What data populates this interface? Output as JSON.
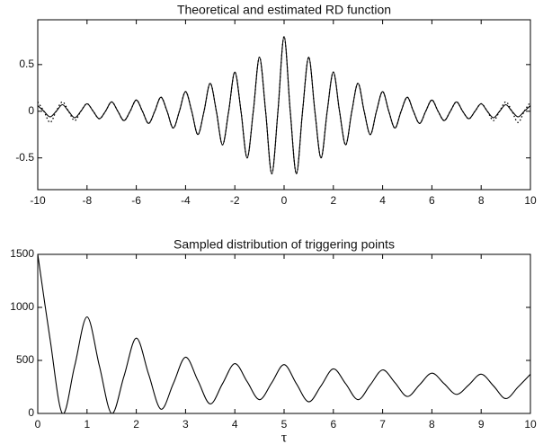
{
  "chart_data": [
    {
      "type": "line",
      "title": "Theoretical and estimated RD function",
      "x": [
        -10,
        -9.75,
        -9.5,
        -9.25,
        -9,
        -8.75,
        -8.5,
        -8.25,
        -8,
        -7.75,
        -7.5,
        -7.25,
        -7,
        -6.75,
        -6.5,
        -6.25,
        -6,
        -5.75,
        -5.5,
        -5.25,
        -5,
        -4.75,
        -4.5,
        -4.25,
        -4,
        -3.75,
        -3.5,
        -3.25,
        -3,
        -2.75,
        -2.5,
        -2.25,
        -2,
        -1.75,
        -1.5,
        -1.25,
        -1,
        -0.75,
        -0.5,
        -0.25,
        0,
        0.25,
        0.5,
        0.75,
        1,
        1.25,
        1.5,
        1.75,
        2,
        2.25,
        2.5,
        2.75,
        3,
        3.25,
        3.5,
        3.75,
        4,
        4.25,
        4.5,
        4.75,
        5,
        5.25,
        5.5,
        5.75,
        6,
        6.25,
        6.5,
        6.75,
        7,
        7.25,
        7.5,
        7.75,
        8,
        8.25,
        8.5,
        8.75,
        9,
        9.25,
        9.5,
        9.75,
        10
      ],
      "series": [
        {
          "color": "#000000",
          "style": "solid",
          "values": [
            0.06,
            0,
            -0.06,
            0,
            0.07,
            0,
            -0.07,
            0,
            0.08,
            0,
            -0.08,
            0,
            0.1,
            0,
            -0.1,
            0,
            0.12,
            0,
            -0.13,
            0,
            0.15,
            0,
            -0.18,
            0,
            0.21,
            0,
            -0.25,
            0,
            0.3,
            0,
            -0.36,
            0,
            0.42,
            0,
            -0.5,
            0,
            0.58,
            0,
            -0.67,
            0,
            0.8,
            0,
            -0.67,
            0,
            0.58,
            0,
            -0.5,
            0,
            0.42,
            0,
            -0.36,
            0,
            0.3,
            0,
            -0.25,
            0,
            0.21,
            0,
            -0.18,
            0,
            0.15,
            0,
            -0.13,
            0,
            0.12,
            0,
            -0.1,
            0,
            0.1,
            0,
            -0.08,
            0,
            0.08,
            0,
            -0.07,
            0,
            0.07,
            0,
            -0.06,
            0,
            0.06
          ]
        },
        {
          "color": "#000000",
          "style": "dotted",
          "values": [
            0.1,
            0,
            -0.12,
            0,
            0.1,
            0,
            -0.1,
            0,
            0.08,
            0,
            -0.08,
            0,
            0.1,
            0,
            -0.1,
            0,
            0.12,
            0,
            -0.13,
            0,
            0.15,
            0,
            -0.18,
            0,
            0.21,
            0,
            -0.25,
            0,
            0.3,
            0,
            -0.36,
            0,
            0.42,
            0,
            -0.5,
            0,
            0.58,
            0,
            -0.67,
            0,
            0.8,
            0,
            -0.67,
            0,
            0.58,
            0,
            -0.5,
            0,
            0.42,
            0,
            -0.36,
            0,
            0.3,
            0,
            -0.25,
            0,
            0.21,
            0,
            -0.18,
            0,
            0.15,
            0,
            -0.13,
            0,
            0.12,
            0,
            -0.1,
            0,
            0.1,
            0,
            -0.08,
            0,
            0.08,
            0,
            -0.1,
            0,
            0.1,
            0,
            -0.12,
            0,
            0.1
          ]
        }
      ],
      "xlim": [
        -10,
        10
      ],
      "xticks": [
        -10,
        -8,
        -6,
        -4,
        -2,
        0,
        2,
        4,
        6,
        8,
        10
      ],
      "ylim": [
        -0.84,
        0.98
      ],
      "yticks": [
        -0.5,
        0,
        0.5
      ],
      "grid": false
    },
    {
      "type": "line",
      "title": "Sampled distribution of triggering points",
      "x_label": "τ",
      "x": [
        0,
        0.25,
        0.5,
        0.75,
        1,
        1.25,
        1.5,
        1.75,
        2,
        2.25,
        2.5,
        2.75,
        3,
        3.25,
        3.5,
        3.75,
        4,
        4.25,
        4.5,
        4.75,
        5,
        5.25,
        5.5,
        5.75,
        6,
        6.25,
        6.5,
        6.75,
        7,
        7.25,
        7.5,
        7.75,
        8,
        8.25,
        8.5,
        8.75,
        9,
        9.25,
        9.5,
        9.75,
        10
      ],
      "series": [
        {
          "color": "#000000",
          "style": "solid",
          "values": [
            1500,
            700,
            0,
            450,
            910,
            450,
            0,
            350,
            710,
            370,
            40,
            280,
            530,
            310,
            90,
            280,
            470,
            300,
            130,
            290,
            460,
            280,
            110,
            260,
            420,
            280,
            130,
            270,
            410,
            290,
            160,
            270,
            380,
            280,
            180,
            270,
            370,
            260,
            140,
            250,
            370
          ]
        }
      ],
      "xlim": [
        0,
        10
      ],
      "xticks": [
        0,
        1,
        2,
        3,
        4,
        5,
        6,
        7,
        8,
        9,
        10
      ],
      "ylim": [
        0,
        1500
      ],
      "yticks": [
        0,
        500,
        1000,
        1500
      ],
      "grid": false
    }
  ]
}
